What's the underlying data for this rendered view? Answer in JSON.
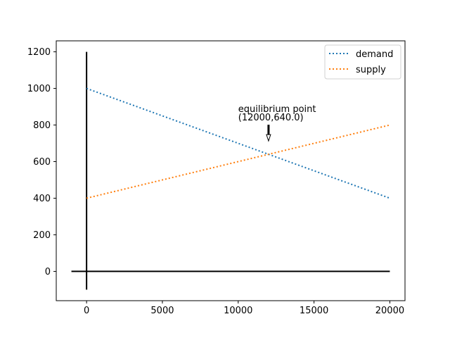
{
  "chart_data": {
    "type": "line",
    "title": "",
    "xlabel": "",
    "ylabel": "",
    "xlim": [
      -2000,
      21000
    ],
    "ylim": [
      -160,
      1260
    ],
    "xticks": [
      0,
      5000,
      10000,
      15000,
      20000
    ],
    "yticks": [
      0,
      200,
      400,
      600,
      800,
      1000,
      1200
    ],
    "grid": false,
    "legend_position": "top-right",
    "series": [
      {
        "name": "demand",
        "color": "#1f77b4",
        "style": "dotted",
        "x": [
          0,
          20000
        ],
        "y": [
          1000,
          400
        ]
      },
      {
        "name": "supply",
        "color": "#ff7f0e",
        "style": "dotted",
        "x": [
          0,
          20000
        ],
        "y": [
          400,
          800
        ]
      }
    ],
    "reference_lines": {
      "horizontal": {
        "y": 0,
        "x_from": -1000,
        "x_to": 20000,
        "color": "#000000"
      },
      "vertical": {
        "x": 0,
        "y_from": -100,
        "y_to": 1200,
        "color": "#000000"
      }
    },
    "annotation": {
      "line1": "equilibrium point",
      "line2": "(12000,640.0)",
      "point": {
        "x": 12000,
        "y": 640
      },
      "text_anchor": {
        "x": 10000,
        "y": 840
      }
    }
  }
}
